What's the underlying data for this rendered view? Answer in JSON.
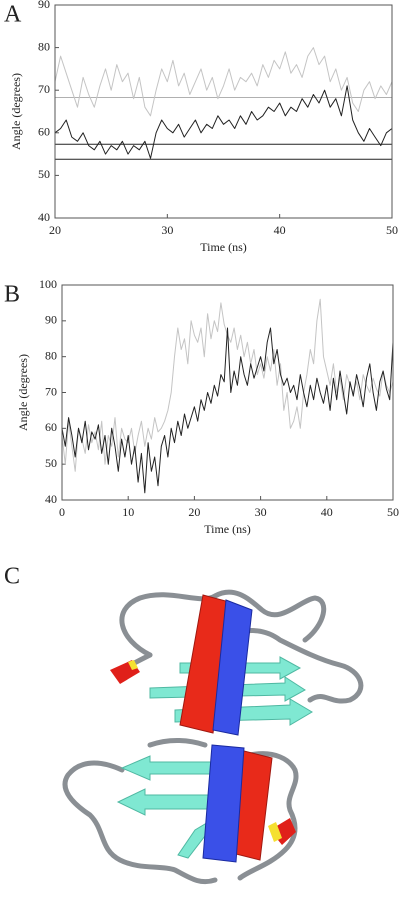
{
  "chart_data": [
    {
      "type": "line",
      "panel": "A",
      "xlabel": "Time (ns)",
      "ylabel": "Angle (degrees)",
      "xlim": [
        20,
        50
      ],
      "ylim": [
        40,
        90
      ],
      "xticks": [
        20,
        30,
        40,
        50
      ],
      "yticks": [
        40,
        50,
        60,
        70,
        80,
        90
      ],
      "hlines": [
        {
          "value": 68.3,
          "color": "#b0b0b0"
        },
        {
          "value": 57.3,
          "color": "#222222"
        },
        {
          "value": 53.8,
          "color": "#222222"
        }
      ],
      "x": [
        20,
        20.5,
        21,
        21.5,
        22,
        22.5,
        23,
        23.5,
        24,
        24.5,
        25,
        25.5,
        26,
        26.5,
        27,
        27.5,
        28,
        28.5,
        29,
        29.5,
        30,
        30.5,
        31,
        31.5,
        32,
        32.5,
        33,
        33.5,
        34,
        34.5,
        35,
        35.5,
        36,
        36.5,
        37,
        37.5,
        38,
        38.5,
        39,
        39.5,
        40,
        40.5,
        41,
        41.5,
        42,
        42.5,
        43,
        43.5,
        44,
        44.5,
        45,
        45.5,
        46,
        46.5,
        47,
        47.5,
        48,
        48.5,
        49,
        49.5,
        50
      ],
      "series": [
        {
          "color": "#c4c4c4",
          "values": [
            72,
            78,
            74,
            70,
            66,
            73,
            69,
            66,
            71,
            75,
            70,
            76,
            72,
            74,
            68,
            73,
            66,
            64,
            70,
            75,
            72,
            77,
            71,
            74,
            69,
            72,
            75,
            70,
            73,
            68,
            71,
            75,
            70,
            73,
            72,
            74,
            71,
            76,
            73,
            77,
            75,
            79,
            74,
            76,
            73,
            78,
            80,
            76,
            78,
            72,
            75,
            70,
            73,
            67,
            65,
            70,
            72,
            68,
            71,
            69,
            72
          ]
        },
        {
          "color": "#222222",
          "values": [
            60,
            61,
            63,
            59,
            58,
            60,
            57,
            56,
            58,
            55,
            57,
            56,
            58,
            55,
            57,
            56,
            58,
            54,
            60,
            63,
            61,
            60,
            62,
            59,
            61,
            63,
            60,
            62,
            61,
            64,
            62,
            63,
            61,
            64,
            62,
            65,
            63,
            64,
            66,
            65,
            67,
            64,
            66,
            65,
            68,
            66,
            69,
            67,
            70,
            66,
            68,
            64,
            71,
            63,
            60,
            58,
            61,
            59,
            57,
            60,
            61
          ]
        }
      ]
    },
    {
      "type": "line",
      "panel": "B",
      "xlabel": "Time (ns)",
      "ylabel": "Angle (degrees)",
      "xlim": [
        0,
        50
      ],
      "ylim": [
        40,
        100
      ],
      "xticks": [
        0,
        10,
        20,
        30,
        40,
        50
      ],
      "yticks": [
        40,
        50,
        60,
        70,
        80,
        90,
        100
      ],
      "hlines": [],
      "x": [
        0,
        0.5,
        1,
        1.5,
        2,
        2.5,
        3,
        3.5,
        4,
        4.5,
        5,
        5.5,
        6,
        6.5,
        7,
        7.5,
        8,
        8.5,
        9,
        9.5,
        10,
        10.5,
        11,
        11.5,
        12,
        12.5,
        13,
        13.5,
        14,
        14.5,
        15,
        15.5,
        16,
        16.5,
        17,
        17.5,
        18,
        18.5,
        19,
        19.5,
        20,
        20.5,
        21,
        21.5,
        22,
        22.5,
        23,
        23.5,
        24,
        24.5,
        25,
        25.5,
        26,
        26.5,
        27,
        27.5,
        28,
        28.5,
        29,
        29.5,
        30,
        30.5,
        31,
        31.5,
        32,
        32.5,
        33,
        33.5,
        34,
        34.5,
        35,
        35.5,
        36,
        36.5,
        37,
        37.5,
        38,
        38.5,
        39,
        39.5,
        40,
        40.5,
        41,
        41.5,
        42,
        42.5,
        43,
        43.5,
        44,
        44.5,
        45,
        45.5,
        46,
        46.5,
        47,
        47.5,
        48,
        48.5,
        49,
        49.5,
        50
      ],
      "series": [
        {
          "color": "#c4c4c4",
          "values": [
            58,
            50,
            62,
            55,
            48,
            60,
            57,
            53,
            61,
            56,
            59,
            54,
            62,
            50,
            58,
            55,
            63,
            52,
            60,
            57,
            56,
            60,
            53,
            58,
            62,
            55,
            60,
            57,
            63,
            59,
            60,
            62,
            65,
            70,
            80,
            88,
            82,
            85,
            78,
            90,
            86,
            84,
            88,
            80,
            92,
            85,
            90,
            87,
            95,
            89,
            86,
            84,
            88,
            82,
            86,
            80,
            84,
            78,
            82,
            75,
            78,
            74,
            80,
            76,
            82,
            72,
            78,
            65,
            70,
            60,
            62,
            66,
            60,
            70,
            75,
            82,
            78,
            90,
            96,
            80,
            76,
            72,
            78,
            70,
            74,
            68,
            75,
            72,
            70,
            73,
            68,
            75,
            72,
            70,
            74,
            71,
            69,
            76,
            72,
            70,
            73
          ]
        },
        {
          "color": "#222222",
          "values": [
            60,
            55,
            63,
            58,
            52,
            60,
            56,
            62,
            54,
            59,
            57,
            61,
            53,
            58,
            50,
            60,
            55,
            48,
            57,
            52,
            58,
            50,
            55,
            45,
            53,
            42,
            56,
            48,
            52,
            44,
            55,
            58,
            52,
            60,
            56,
            62,
            58,
            64,
            60,
            63,
            66,
            62,
            68,
            65,
            70,
            67,
            72,
            69,
            75,
            73,
            88,
            70,
            76,
            72,
            80,
            75,
            72,
            78,
            74,
            77,
            80,
            76,
            84,
            88,
            78,
            82,
            75,
            72,
            74,
            70,
            72,
            68,
            75,
            70,
            66,
            72,
            68,
            74,
            70,
            67,
            72,
            65,
            74,
            68,
            76,
            70,
            64,
            73,
            69,
            75,
            71,
            66,
            74,
            78,
            70,
            65,
            73,
            76,
            71,
            68,
            84
          ]
        }
      ]
    }
  ],
  "figure_c": {
    "panel": "C"
  }
}
